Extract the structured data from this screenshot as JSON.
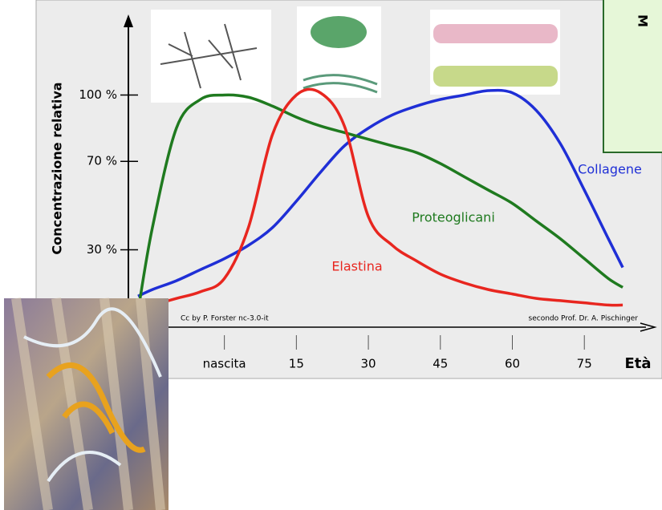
{
  "chart_data": {
    "type": "line",
    "y_label": "Concentrazione relativa",
    "x_label": "Età",
    "credit_left": "Cc by P. Forster nc-3.0-it",
    "credit_right": "secondo Prof. Dr. A. Pischinger",
    "side_note": "M",
    "x": [
      -18,
      -15,
      -10,
      -5,
      0,
      5,
      10,
      15,
      20,
      25,
      30,
      35,
      40,
      45,
      50,
      55,
      60,
      65,
      70,
      75,
      80,
      83
    ],
    "xlim": [
      -20,
      87
    ],
    "xticks": [
      {
        "value": 0,
        "label": "nascita"
      },
      15,
      30,
      45,
      60,
      75
    ],
    "ylim": [
      -5,
      135
    ],
    "yticks": [
      {
        "value": 30,
        "label": "30 %"
      },
      {
        "value": 70,
        "label": "70 %"
      },
      {
        "value": 100,
        "label": "100 %"
      }
    ],
    "series": [
      {
        "name": "Collagene",
        "color": "#1f2fd6",
        "values": [
          9,
          12,
          16,
          21,
          26,
          32,
          40,
          52,
          65,
          77,
          85,
          91,
          95,
          98,
          100,
          102,
          101,
          93,
          78,
          57,
          35,
          22
        ]
      },
      {
        "name": "Proteoglicani",
        "color": "#1f7a1f",
        "values": [
          2,
          40,
          85,
          98,
          100,
          99,
          95,
          90,
          86,
          83,
          80,
          77,
          74,
          69,
          63,
          57,
          51,
          43,
          35,
          26,
          17,
          13
        ]
      },
      {
        "name": "Elastina",
        "color": "#e8261f",
        "values": [
          3,
          5,
          8,
          11,
          17,
          40,
          82,
          100,
          101,
          86,
          45,
          32,
          25,
          19,
          15,
          12,
          10,
          8,
          7,
          6,
          5,
          5
        ]
      }
    ]
  }
}
